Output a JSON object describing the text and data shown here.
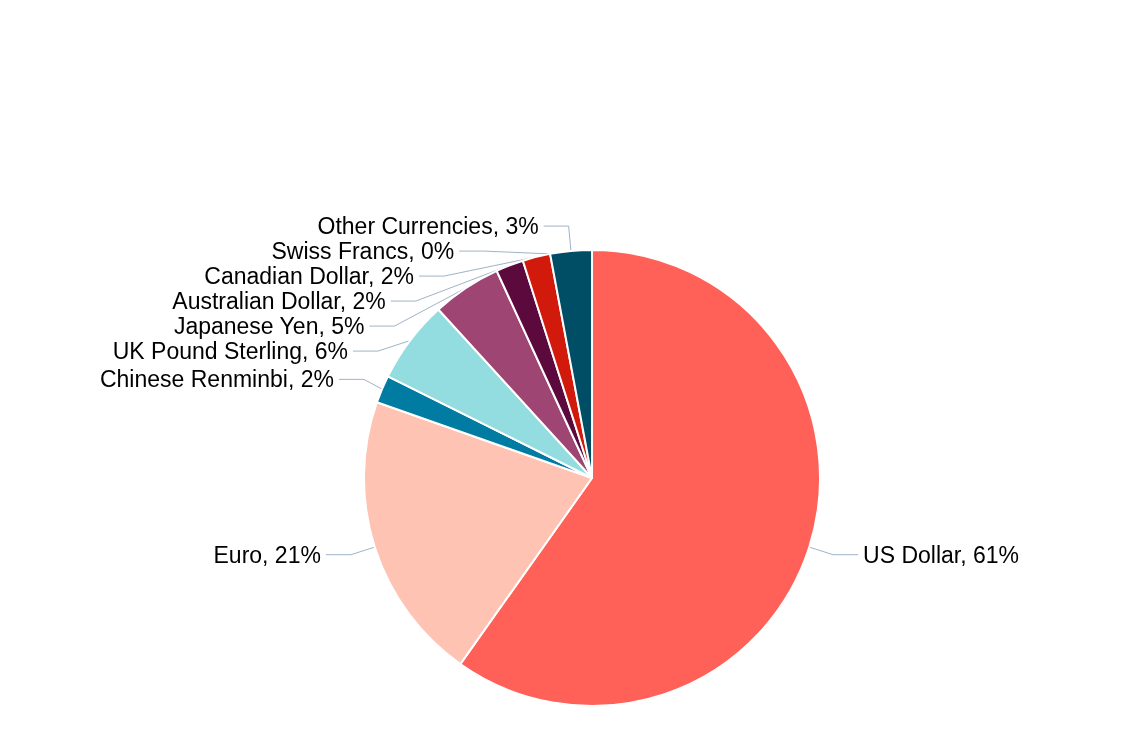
{
  "chart_data": {
    "type": "pie",
    "categories": [
      "US Dollar",
      "Euro",
      "Chinese Renminbi",
      "UK Pound Sterling",
      "Japanese Yen",
      "Australian Dollar",
      "Canadian Dollar",
      "Swiss Francs",
      "Other Currencies"
    ],
    "values": [
      61,
      21,
      2,
      6,
      5,
      2,
      2,
      0,
      3
    ],
    "value_labels": [
      "61%",
      "21%",
      "2%",
      "6%",
      "5%",
      "2%",
      "2%",
      "0%",
      "3%"
    ],
    "colors": [
      "#ff6058",
      "#fec3b2",
      "#007ca3",
      "#93dce0",
      "#9e4574",
      "#5c0a3d",
      "#d11a0b",
      "#f2f2f2",
      "#004d66"
    ]
  }
}
